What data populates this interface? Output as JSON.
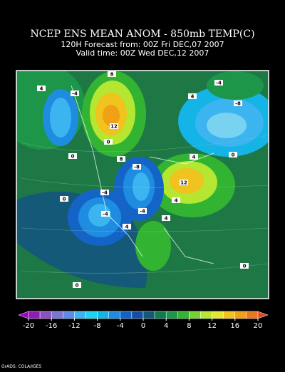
{
  "title": "NCEP ENS MEAN ANOM - 850mb TEMP(C)",
  "subtitle_lines": [
    "120H Forecast from: 00Z Fri DEC,07 2007",
    "Valid time: 00Z Wed DEC,12 2007"
  ],
  "contour_labels": [
    4,
    -4,
    8,
    12,
    0,
    4,
    -4,
    -8,
    0,
    4,
    0,
    -8,
    8,
    12,
    -4,
    0,
    4,
    -4,
    -4,
    4,
    4,
    0,
    0
  ],
  "colorbar": {
    "ticks": [
      -20,
      -16,
      -12,
      -8,
      -4,
      0,
      4,
      8,
      12,
      16,
      20
    ],
    "colors": [
      "#a000c8",
      "#8c1eb4",
      "#8c50c0",
      "#7878d2",
      "#5c8ce6",
      "#3cb4f0",
      "#1ed2f0",
      "#14b4e6",
      "#1e8ce0",
      "#1464c8",
      "#144ea0",
      "#145a78",
      "#147850",
      "#1e964a",
      "#32b432",
      "#78d232",
      "#b4e632",
      "#e6e632",
      "#f0c31e",
      "#f0a014",
      "#e6781e",
      "#e6461e"
    ]
  },
  "footer": "GrADS: COLA/IGES"
}
